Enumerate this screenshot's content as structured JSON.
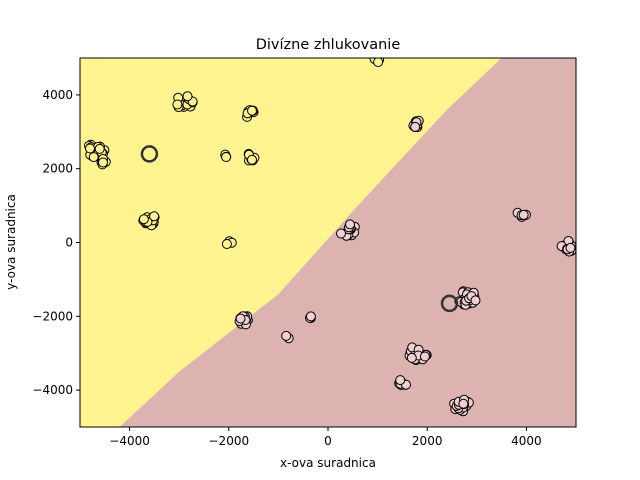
{
  "chart_data": {
    "type": "scatter",
    "title": "Divízne zhlukovanie",
    "xlabel": "x-ova suradnica",
    "ylabel": "y-ova suradnica",
    "xlim": [
      -5000,
      5000
    ],
    "ylim": [
      -5000,
      5000
    ],
    "xticks": [
      -4000,
      -2000,
      0,
      2000,
      4000
    ],
    "yticks": [
      -4000,
      -2000,
      0,
      2000,
      4000
    ],
    "xtick_labels": [
      "−4000",
      "−2000",
      "0",
      "2000",
      "4000"
    ],
    "ytick_labels": [
      "−4000",
      "−2000",
      "0",
      "2000",
      "4000"
    ],
    "grid": false,
    "regions": {
      "yellow": "#fff48f",
      "pink": "#dcb3b0",
      "boundary": [
        [
          -4200,
          -5000
        ],
        [
          -3000,
          -3500
        ],
        [
          -1000,
          -1400
        ],
        [
          600,
          1000
        ],
        [
          2400,
          3600
        ],
        [
          3500,
          5000
        ]
      ]
    },
    "clusters": [
      {
        "region": "yellow",
        "center": [
          -4700,
          2500
        ],
        "spread": 200,
        "n": 22
      },
      {
        "region": "yellow",
        "center": [
          -4500,
          2200
        ],
        "spread": 100,
        "n": 10
      },
      {
        "region": "yellow",
        "center": [
          -3600,
          600
        ],
        "spread": 150,
        "n": 16
      },
      {
        "region": "yellow",
        "center": [
          -2900,
          3800
        ],
        "spread": 180,
        "n": 16
      },
      {
        "region": "yellow",
        "center": [
          -1600,
          3500
        ],
        "spread": 120,
        "n": 7
      },
      {
        "region": "yellow",
        "center": [
          -1600,
          2300
        ],
        "spread": 120,
        "n": 8
      },
      {
        "region": "yellow",
        "center": [
          -2050,
          2350
        ],
        "spread": 50,
        "n": 3
      },
      {
        "region": "yellow",
        "center": [
          -2000,
          0
        ],
        "spread": 60,
        "n": 3
      },
      {
        "region": "yellow",
        "center": [
          1000,
          4970
        ],
        "spread": 80,
        "n": 4
      },
      {
        "region": "pink",
        "center": [
          1800,
          3200
        ],
        "spread": 120,
        "n": 10
      },
      {
        "region": "pink",
        "center": [
          400,
          350
        ],
        "spread": 180,
        "n": 12
      },
      {
        "region": "pink",
        "center": [
          -1700,
          -2100
        ],
        "spread": 130,
        "n": 14
      },
      {
        "region": "pink",
        "center": [
          -350,
          -2050
        ],
        "spread": 50,
        "n": 3
      },
      {
        "region": "pink",
        "center": [
          -800,
          -2550
        ],
        "spread": 50,
        "n": 2
      },
      {
        "region": "pink",
        "center": [
          1800,
          -3000
        ],
        "spread": 200,
        "n": 18
      },
      {
        "region": "pink",
        "center": [
          1500,
          -3800
        ],
        "spread": 100,
        "n": 8
      },
      {
        "region": "pink",
        "center": [
          2800,
          -1500
        ],
        "spread": 200,
        "n": 35
      },
      {
        "region": "pink",
        "center": [
          2700,
          -4400
        ],
        "spread": 180,
        "n": 22
      },
      {
        "region": "pink",
        "center": [
          3900,
          750
        ],
        "spread": 100,
        "n": 6
      },
      {
        "region": "pink",
        "center": [
          4850,
          -100
        ],
        "spread": 150,
        "n": 14
      }
    ],
    "centroids": [
      {
        "x": -3600,
        "y": 2400
      },
      {
        "x": 2450,
        "y": -1650
      }
    ],
    "colors": {
      "yellow_point": "#fff48f",
      "pink_point": "#f2cfd1",
      "point_edge": "#000000",
      "centroid_edge": "#333333"
    }
  }
}
